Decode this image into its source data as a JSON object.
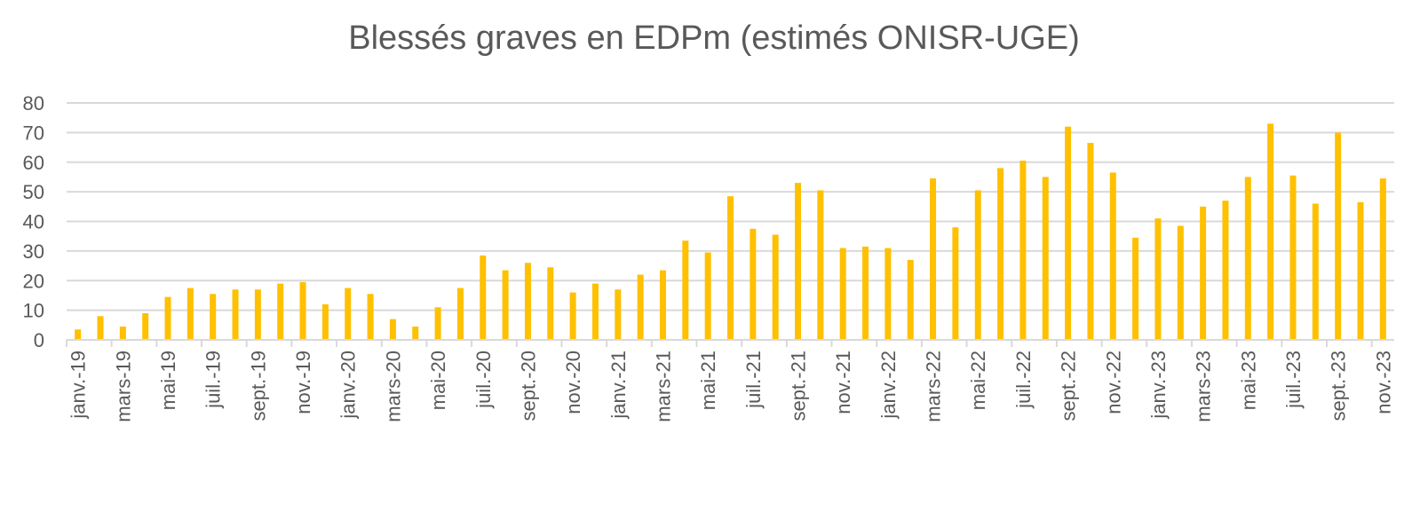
{
  "chart_data": {
    "type": "bar",
    "title": "Blessés graves en EDPm (estimés ONISR-UGE)",
    "xlabel": "",
    "ylabel": "",
    "ylim": [
      0,
      80
    ],
    "yticks": [
      "0",
      "10",
      "20",
      "30",
      "40",
      "50",
      "60",
      "70",
      "80"
    ],
    "grid": true,
    "bar_color": "#FFC000",
    "categories": [
      "janv.-19",
      "févr.-19",
      "mars-19",
      "avr.-19",
      "mai-19",
      "juin-19",
      "juil.-19",
      "août-19",
      "sept.-19",
      "oct.-19",
      "nov.-19",
      "déc.-19",
      "janv.-20",
      "févr.-20",
      "mars-20",
      "avr.-20",
      "mai-20",
      "juin-20",
      "juil.-20",
      "août-20",
      "sept.-20",
      "oct.-20",
      "nov.-20",
      "déc.-20",
      "janv.-21",
      "févr.-21",
      "mars-21",
      "avr.-21",
      "mai-21",
      "juin-21",
      "juil.-21",
      "août-21",
      "sept.-21",
      "oct.-21",
      "nov.-21",
      "déc.-21",
      "janv.-22",
      "févr.-22",
      "mars-22",
      "avr.-22",
      "mai-22",
      "juin-22",
      "juil.-22",
      "août-22",
      "sept.-22",
      "oct.-22",
      "nov.-22",
      "déc.-22",
      "janv.-23",
      "févr.-23",
      "mars-23",
      "avr.-23",
      "mai-23",
      "juin-23",
      "juil.-23",
      "août-23",
      "sept.-23",
      "oct.-23",
      "nov.-23"
    ],
    "values": [
      3.5,
      8,
      4.5,
      9,
      14.5,
      17.5,
      15.5,
      17,
      17,
      19,
      19.5,
      12,
      17.5,
      15.5,
      7,
      4.5,
      11,
      17.5,
      28.5,
      23.5,
      26,
      24.5,
      16,
      19,
      17,
      22,
      23.5,
      33.5,
      29.5,
      48.5,
      37.5,
      35.5,
      53,
      50.5,
      31,
      31.5,
      31,
      27,
      54.5,
      38,
      50.5,
      58,
      60.5,
      55,
      72,
      66.5,
      56.5,
      34.5,
      41,
      38.5,
      45,
      47,
      55,
      73,
      55.5,
      46,
      70,
      46.5,
      54.5
    ],
    "visible_xtick_every": 2
  }
}
